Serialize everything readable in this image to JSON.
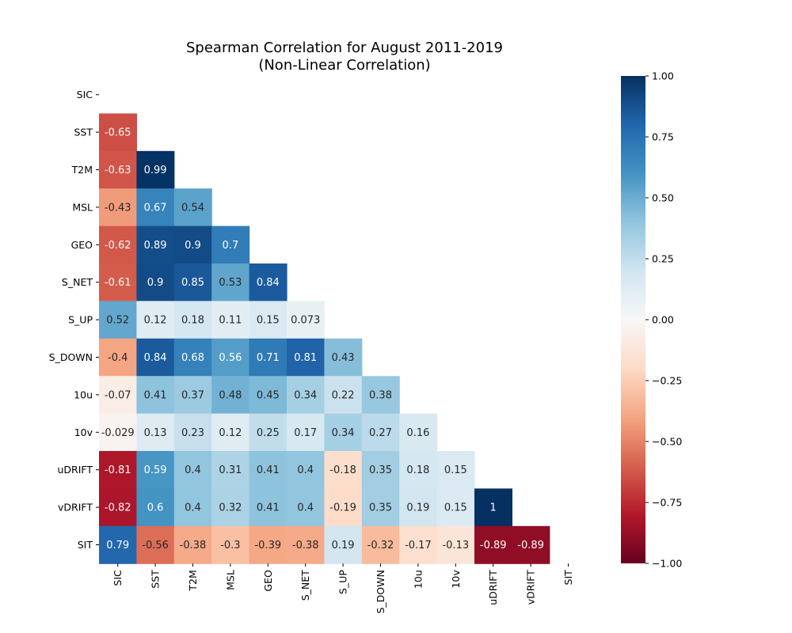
{
  "chart_data": {
    "type": "heatmap",
    "title": "Spearman Correlation for August 2011-2019",
    "subtitle": "(Non-Linear Correlation)",
    "variables": [
      "SIC",
      "SST",
      "T2M",
      "MSL",
      "GEO",
      "S_NET",
      "S_UP",
      "S_DOWN",
      "10u",
      "10v",
      "uDRIFT",
      "vDRIFT",
      "SIT"
    ],
    "mask": "upper-triangle-including-diagonal",
    "values": [
      [],
      [
        -0.65
      ],
      [
        -0.63,
        0.99
      ],
      [
        -0.43,
        0.67,
        0.54
      ],
      [
        -0.62,
        0.89,
        0.9,
        0.7
      ],
      [
        -0.61,
        0.9,
        0.85,
        0.53,
        0.84
      ],
      [
        0.52,
        0.12,
        0.18,
        0.11,
        0.15,
        0.073
      ],
      [
        -0.4,
        0.84,
        0.68,
        0.56,
        0.71,
        0.81,
        0.43
      ],
      [
        -0.07,
        0.41,
        0.37,
        0.48,
        0.45,
        0.34,
        0.22,
        0.38
      ],
      [
        -0.029,
        0.13,
        0.23,
        0.12,
        0.25,
        0.17,
        0.34,
        0.27,
        0.16
      ],
      [
        -0.81,
        0.59,
        0.4,
        0.31,
        0.41,
        0.4,
        -0.18,
        0.35,
        0.18,
        0.15
      ],
      [
        -0.82,
        0.6,
        0.4,
        0.32,
        0.41,
        0.4,
        -0.19,
        0.35,
        0.19,
        0.15,
        1
      ],
      [
        0.79,
        -0.56,
        -0.38,
        -0.3,
        -0.39,
        -0.38,
        0.19,
        -0.32,
        -0.17,
        -0.13,
        -0.89,
        -0.89
      ]
    ],
    "colorbar": {
      "colormap": "RdBu",
      "range": [
        -1,
        1
      ],
      "ticks": [
        1.0,
        0.75,
        0.5,
        0.25,
        0.0,
        -0.25,
        -0.5,
        -0.75,
        -1.0
      ],
      "tick_labels": [
        "1.00",
        "0.75",
        "0.50",
        "0.25",
        "0.00",
        "−0.25",
        "−0.50",
        "−0.75",
        "−1.00"
      ]
    }
  }
}
